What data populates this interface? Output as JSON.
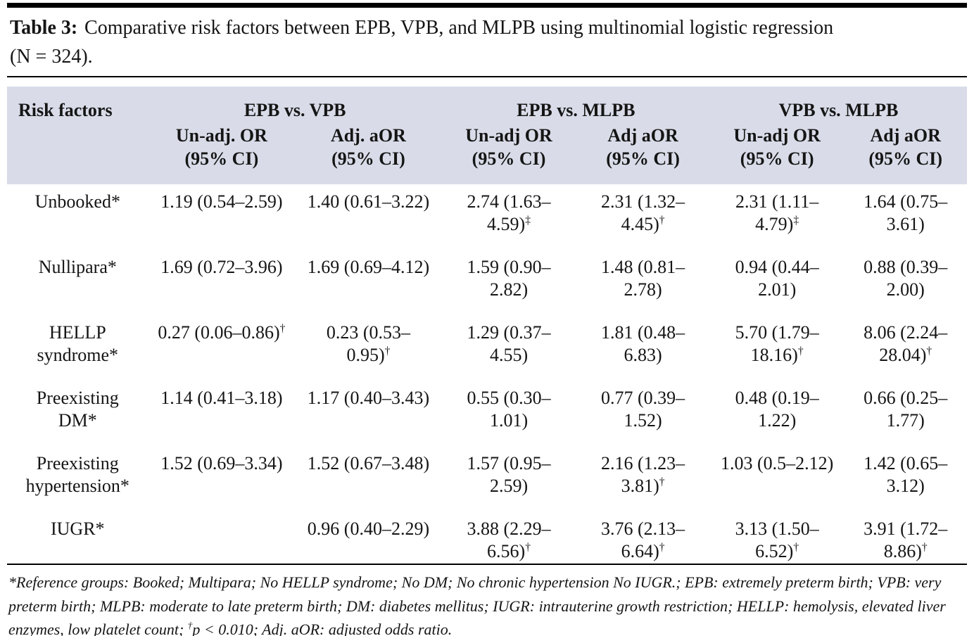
{
  "title": {
    "label": "Table 3:",
    "rest": "Comparative risk factors between EPB, VPB, and MLPB using multinomial logistic regression\n(N = 324)."
  },
  "colors": {
    "header_bg": "#d9dce8",
    "rule": "#000000",
    "text": "#151515"
  },
  "table": {
    "corner_header": "Risk factors",
    "groups": [
      {
        "label": "EPB vs. VPB",
        "sub": [
          "Un-adj. OR\n(95% CI)",
          "Adj. aOR\n(95% CI)"
        ]
      },
      {
        "label": "EPB vs. MLPB",
        "sub": [
          "Un-adj OR\n(95% CI)",
          "Adj aOR\n(95% CI)"
        ]
      },
      {
        "label": "VPB vs. MLPB",
        "sub": [
          "Un-adj OR\n(95% CI)",
          "Adj aOR\n(95% CI)"
        ]
      }
    ],
    "rows": [
      {
        "label": "Unbooked*",
        "cells": [
          "1.19 (0.54–2.59)",
          "1.40 (0.61–3.22)",
          "2.74 (1.63–\n4.59)‡",
          "2.31 (1.32–\n4.45)†",
          "2.31 (1.11–\n4.79)‡",
          "1.64 (0.75–\n3.61)"
        ]
      },
      {
        "label": "Nullipara*",
        "cells": [
          "1.69 (0.72–3.96)",
          "1.69 (0.69–4.12)",
          "1.59 (0.90–\n2.82)",
          "1.48 (0.81–\n2.78)",
          "0.94 (0.44–\n2.01)",
          "0.88 (0.39–\n2.00)"
        ]
      },
      {
        "label": "HELLP\nsyndrome*",
        "cells": [
          "0.27 (0.06–0.86)†",
          "0.23 (0.53–\n0.95)†",
          "1.29 (0.37–\n4.55)",
          "1.81 (0.48–\n6.83)",
          "5.70 (1.79–\n18.16)†",
          "8.06 (2.24–\n28.04)†"
        ]
      },
      {
        "label": "Preexisting\nDM*",
        "cells": [
          "1.14 (0.41–3.18)",
          "1.17 (0.40–3.43)",
          "0.55 (0.30–\n1.01)",
          "0.77 (0.39–\n1.52)",
          "0.48 (0.19–\n1.22)",
          "0.66 (0.25–\n1.77)"
        ]
      },
      {
        "label": "Preexisting\nhypertension*",
        "cells": [
          "1.52 (0.69–3.34)",
          "1.52 (0.67–3.48)",
          "1.57 (0.95–\n2.59)",
          "2.16 (1.23–\n3.81)†",
          "1.03 (0.5–2.12)",
          "1.42 (0.65–\n3.12)"
        ]
      },
      {
        "label": "IUGR*",
        "cells": [
          "",
          "0.96 (0.40–2.29)",
          "3.88 (2.29–\n6.56)†",
          "3.76 (2.13–\n6.64)†",
          "3.13 (1.50–\n6.52)†",
          "3.91 (1.72–\n8.86)†"
        ]
      }
    ]
  },
  "footnote": "*Reference groups: Booked; Multipara; No HELLP syndrome; No DM; No chronic hypertension No IUGR.; EPB: extremely preterm birth; VPB: very preterm birth; MLPB: moderate to late preterm birth; DM: diabetes mellitus; IUGR: intrauterine growth restriction; HELLP: hemolysis, elevated liver enzymes, low platelet count; †p < 0.010; Adj. aOR: adjusted odds ratio."
}
